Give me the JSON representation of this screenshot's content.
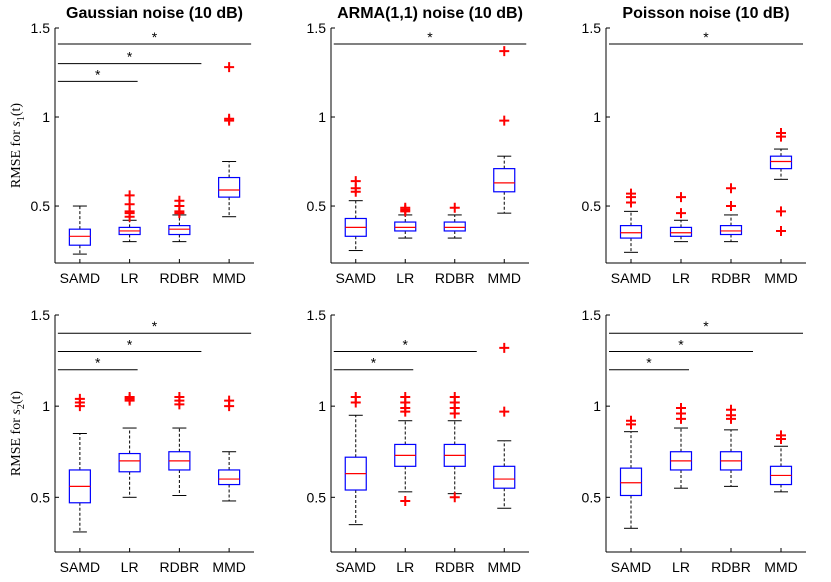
{
  "colors": {
    "box": "#0000ff",
    "median": "#ff0000",
    "outlier": "#ff0000",
    "whisker": "#000000",
    "axis": "#000000"
  },
  "chart_data": [
    {
      "type": "box",
      "title": "Gaussian noise (10 dB)",
      "ylabel": {
        "prefix": "RMSE for ",
        "symbol": "s",
        "sub": "1",
        "suffix": "(t)"
      },
      "categories": [
        "SAMD",
        "LR",
        "RDBR",
        "MMD"
      ],
      "ylim": [
        0.18,
        1.5
      ],
      "yticks": [
        0.5,
        1,
        1.5
      ],
      "ytick_labels": [
        "0.5",
        "1",
        "1.5"
      ],
      "boxes": [
        {
          "q1": 0.28,
          "median": 0.33,
          "q3": 0.37,
          "lo": 0.23,
          "hi": 0.5,
          "outliers": []
        },
        {
          "q1": 0.34,
          "median": 0.36,
          "q3": 0.38,
          "lo": 0.3,
          "hi": 0.42,
          "outliers": [
            0.44,
            0.46,
            0.47,
            0.51,
            0.56
          ]
        },
        {
          "q1": 0.34,
          "median": 0.37,
          "q3": 0.39,
          "lo": 0.3,
          "hi": 0.45,
          "outliers": [
            0.46,
            0.47,
            0.5,
            0.53
          ]
        },
        {
          "q1": 0.55,
          "median": 0.59,
          "q3": 0.66,
          "lo": 0.44,
          "hi": 0.75,
          "outliers": [
            0.98,
            0.99,
            1.28
          ]
        }
      ],
      "significance": [
        {
          "from": 0,
          "to": 1,
          "y": 1.2,
          "label": "*"
        },
        {
          "from": 0,
          "to": 2,
          "y": 1.3,
          "label": "*"
        },
        {
          "from": 0,
          "to": 3,
          "y": 1.41,
          "label": "*"
        }
      ]
    },
    {
      "type": "box",
      "title": "ARMA(1,1) noise (10 dB)",
      "ylabel": null,
      "categories": [
        "SAMD",
        "LR",
        "RDBR",
        "MMD"
      ],
      "ylim": [
        0.18,
        1.5
      ],
      "yticks": [
        0.5,
        1,
        1.5
      ],
      "ytick_labels": [
        "0.5",
        "1",
        "1.5"
      ],
      "boxes": [
        {
          "q1": 0.33,
          "median": 0.38,
          "q3": 0.43,
          "lo": 0.25,
          "hi": 0.53,
          "outliers": [
            0.58,
            0.6,
            0.64
          ]
        },
        {
          "q1": 0.36,
          "median": 0.38,
          "q3": 0.41,
          "lo": 0.32,
          "hi": 0.45,
          "outliers": [
            0.47,
            0.48,
            0.49
          ]
        },
        {
          "q1": 0.36,
          "median": 0.38,
          "q3": 0.41,
          "lo": 0.32,
          "hi": 0.45,
          "outliers": [
            0.49
          ]
        },
        {
          "q1": 0.58,
          "median": 0.63,
          "q3": 0.71,
          "lo": 0.46,
          "hi": 0.78,
          "outliers": [
            0.98,
            1.37
          ]
        }
      ],
      "significance": [
        {
          "from": 0,
          "to": 3,
          "y": 1.41,
          "label": "*"
        }
      ]
    },
    {
      "type": "box",
      "title": "Poisson noise (10 dB)",
      "ylabel": null,
      "categories": [
        "SAMD",
        "LR",
        "RDBR",
        "MMD"
      ],
      "ylim": [
        0.18,
        1.5
      ],
      "yticks": [
        0.5,
        1,
        1.5
      ],
      "ytick_labels": [
        "0.5",
        "1",
        "1.5"
      ],
      "boxes": [
        {
          "q1": 0.32,
          "median": 0.35,
          "q3": 0.39,
          "lo": 0.24,
          "hi": 0.47,
          "outliers": [
            0.52,
            0.55,
            0.57
          ]
        },
        {
          "q1": 0.33,
          "median": 0.35,
          "q3": 0.38,
          "lo": 0.3,
          "hi": 0.42,
          "outliers": [
            0.46,
            0.55
          ]
        },
        {
          "q1": 0.34,
          "median": 0.36,
          "q3": 0.39,
          "lo": 0.3,
          "hi": 0.45,
          "outliers": [
            0.5,
            0.6
          ]
        },
        {
          "q1": 0.71,
          "median": 0.75,
          "q3": 0.78,
          "lo": 0.65,
          "hi": 0.82,
          "outliers": [
            0.36,
            0.47,
            0.89,
            0.91
          ]
        }
      ],
      "significance": [
        {
          "from": 0,
          "to": 3,
          "y": 1.41,
          "label": "*"
        }
      ]
    },
    {
      "type": "box",
      "title": "",
      "ylabel": {
        "prefix": "RMSE for ",
        "symbol": "s",
        "sub": "2",
        "suffix": "(t)"
      },
      "categories": [
        "SAMD",
        "LR",
        "RDBR",
        "MMD"
      ],
      "ylim": [
        0.2,
        1.5
      ],
      "yticks": [
        0.5,
        1,
        1.5
      ],
      "ytick_labels": [
        "0.5",
        "1",
        "1.5"
      ],
      "boxes": [
        {
          "q1": 0.47,
          "median": 0.56,
          "q3": 0.65,
          "lo": 0.31,
          "hi": 0.85,
          "outliers": [
            1.0,
            1.02,
            1.04
          ]
        },
        {
          "q1": 0.64,
          "median": 0.7,
          "q3": 0.74,
          "lo": 0.5,
          "hi": 0.88,
          "outliers": [
            1.03,
            1.04,
            1.05
          ]
        },
        {
          "q1": 0.65,
          "median": 0.7,
          "q3": 0.75,
          "lo": 0.51,
          "hi": 0.88,
          "outliers": [
            1.01,
            1.03,
            1.05
          ]
        },
        {
          "q1": 0.57,
          "median": 0.6,
          "q3": 0.65,
          "lo": 0.48,
          "hi": 0.75,
          "outliers": [
            1.0,
            1.03
          ]
        }
      ],
      "significance": [
        {
          "from": 0,
          "to": 1,
          "y": 1.2,
          "label": "*"
        },
        {
          "from": 0,
          "to": 2,
          "y": 1.3,
          "label": "*"
        },
        {
          "from": 0,
          "to": 3,
          "y": 1.4,
          "label": "*"
        }
      ]
    },
    {
      "type": "box",
      "title": "",
      "ylabel": null,
      "categories": [
        "SAMD",
        "LR",
        "RDBR",
        "MMD"
      ],
      "ylim": [
        0.2,
        1.5
      ],
      "yticks": [
        0.5,
        1,
        1.5
      ],
      "ytick_labels": [
        "0.5",
        "1",
        "1.5"
      ],
      "boxes": [
        {
          "q1": 0.54,
          "median": 0.63,
          "q3": 0.72,
          "lo": 0.35,
          "hi": 0.95,
          "outliers": [
            1.02,
            1.05
          ]
        },
        {
          "q1": 0.67,
          "median": 0.73,
          "q3": 0.79,
          "lo": 0.53,
          "hi": 0.92,
          "outliers": [
            0.48,
            0.97,
            0.99,
            1.02,
            1.05
          ]
        },
        {
          "q1": 0.67,
          "median": 0.73,
          "q3": 0.79,
          "lo": 0.52,
          "hi": 0.92,
          "outliers": [
            0.5,
            0.96,
            0.99,
            1.02,
            1.05
          ]
        },
        {
          "q1": 0.55,
          "median": 0.6,
          "q3": 0.67,
          "lo": 0.44,
          "hi": 0.81,
          "outliers": [
            0.97,
            1.32
          ]
        }
      ],
      "significance": [
        {
          "from": 0,
          "to": 1,
          "y": 1.2,
          "label": "*"
        },
        {
          "from": 0,
          "to": 2,
          "y": 1.3,
          "label": "*"
        }
      ]
    },
    {
      "type": "box",
      "title": "",
      "ylabel": null,
      "categories": [
        "SAMD",
        "LR",
        "RDBR",
        "MMD"
      ],
      "ylim": [
        0.2,
        1.5
      ],
      "yticks": [
        0.5,
        1,
        1.5
      ],
      "ytick_labels": [
        "0.5",
        "1",
        "1.5"
      ],
      "boxes": [
        {
          "q1": 0.51,
          "median": 0.58,
          "q3": 0.66,
          "lo": 0.33,
          "hi": 0.86,
          "outliers": [
            0.9,
            0.92
          ]
        },
        {
          "q1": 0.65,
          "median": 0.7,
          "q3": 0.75,
          "lo": 0.55,
          "hi": 0.88,
          "outliers": [
            0.93,
            0.96,
            0.99
          ]
        },
        {
          "q1": 0.65,
          "median": 0.7,
          "q3": 0.75,
          "lo": 0.56,
          "hi": 0.87,
          "outliers": [
            0.93,
            0.95,
            0.98
          ]
        },
        {
          "q1": 0.57,
          "median": 0.62,
          "q3": 0.67,
          "lo": 0.53,
          "hi": 0.78,
          "outliers": [
            0.82,
            0.84
          ]
        }
      ],
      "significance": [
        {
          "from": 0,
          "to": 1,
          "y": 1.2,
          "label": "*"
        },
        {
          "from": 0,
          "to": 2,
          "y": 1.3,
          "label": "*"
        },
        {
          "from": 0,
          "to": 3,
          "y": 1.4,
          "label": "*"
        }
      ]
    }
  ]
}
